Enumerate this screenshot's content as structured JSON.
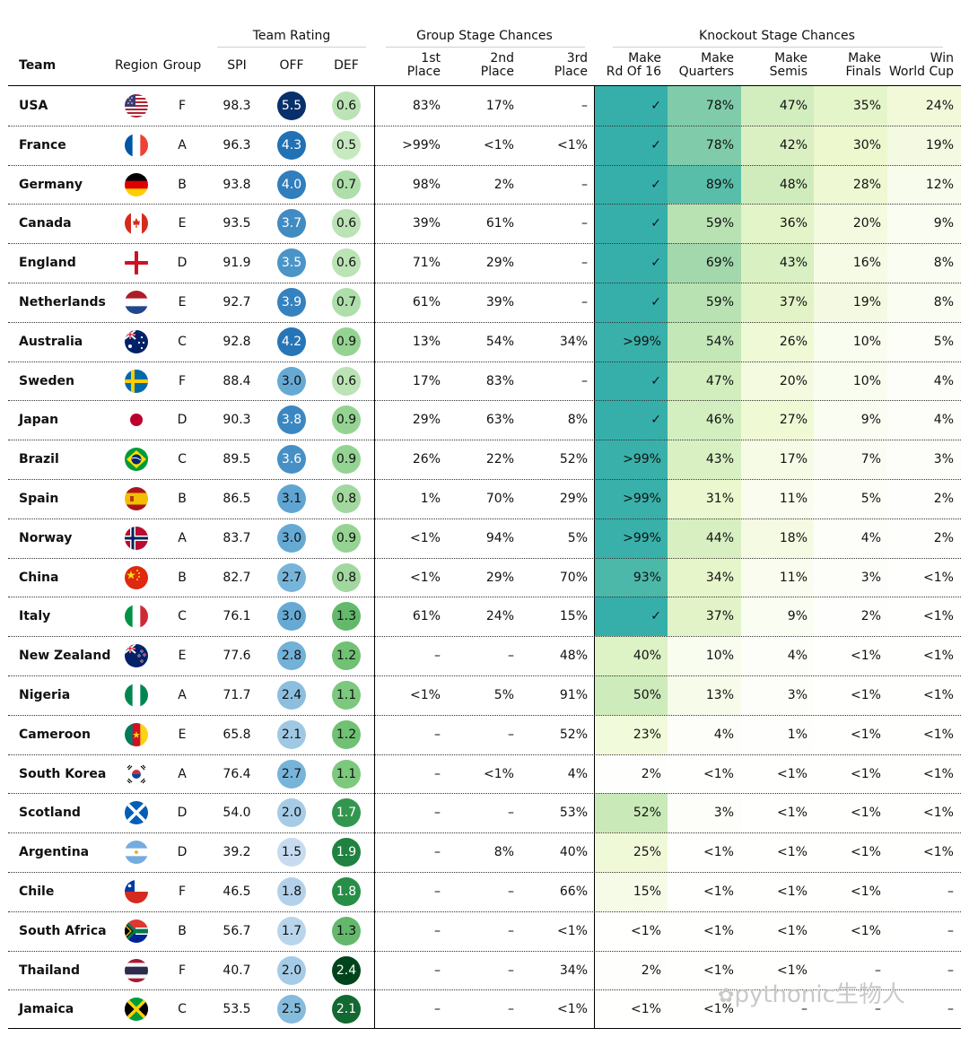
{
  "header": {
    "groups": {
      "team_rating": "Team Rating",
      "group_stage": "Group Stage Chances",
      "knockout_stage": "Knockout Stage Chances"
    },
    "columns": {
      "team": "Team",
      "region": "Region",
      "group": "Group",
      "spi": "SPI",
      "off": "OFF",
      "def": "DEF",
      "first": [
        "1st",
        "Place"
      ],
      "second": [
        "2nd",
        "Place"
      ],
      "third": [
        "3rd",
        "Place"
      ],
      "r16": [
        "Make",
        "Rd Of 16"
      ],
      "qf": [
        "Make",
        "Quarters"
      ],
      "sf": [
        "Make",
        "Semis"
      ],
      "final": [
        "Make",
        "Finals"
      ],
      "win": [
        "Win",
        "World Cup"
      ]
    }
  },
  "chart_data": {
    "type": "table",
    "color_scales": {
      "off": "sequential blue (low = light blue, high = dark navy)",
      "def": "sequential green (low = light green, high = dark green)",
      "knockout": "YlGnBu-style (0% = white, 100% = teal)"
    },
    "rows": [
      {
        "team": "USA",
        "flag": "usa-flag",
        "group": "F",
        "spi": "98.3",
        "off": "5.5",
        "def": "0.6",
        "first": "83%",
        "second": "17%",
        "third": "–",
        "r16": "✓",
        "qf": "78%",
        "sf": "47%",
        "final": "35%",
        "win": "24%",
        "r16_value": 100,
        "qf_value": 78,
        "sf_value": 47,
        "final_value": 35,
        "win_value": 24
      },
      {
        "team": "France",
        "flag": "france-flag",
        "group": "A",
        "spi": "96.3",
        "off": "4.3",
        "def": "0.5",
        "first": ">99%",
        "second": "<1%",
        "third": "<1%",
        "r16": "✓",
        "qf": "78%",
        "sf": "42%",
        "final": "30%",
        "win": "19%",
        "r16_value": 100,
        "qf_value": 78,
        "sf_value": 42,
        "final_value": 30,
        "win_value": 19
      },
      {
        "team": "Germany",
        "flag": "germany-flag",
        "group": "B",
        "spi": "93.8",
        "off": "4.0",
        "def": "0.7",
        "first": "98%",
        "second": "2%",
        "third": "–",
        "r16": "✓",
        "qf": "89%",
        "sf": "48%",
        "final": "28%",
        "win": "12%",
        "r16_value": 100,
        "qf_value": 89,
        "sf_value": 48,
        "final_value": 28,
        "win_value": 12
      },
      {
        "team": "Canada",
        "flag": "canada-flag",
        "group": "E",
        "spi": "93.5",
        "off": "3.7",
        "def": "0.6",
        "first": "39%",
        "second": "61%",
        "third": "–",
        "r16": "✓",
        "qf": "59%",
        "sf": "36%",
        "final": "20%",
        "win": "9%",
        "r16_value": 100,
        "qf_value": 59,
        "sf_value": 36,
        "final_value": 20,
        "win_value": 9
      },
      {
        "team": "England",
        "flag": "england-flag",
        "group": "D",
        "spi": "91.9",
        "off": "3.5",
        "def": "0.6",
        "first": "71%",
        "second": "29%",
        "third": "–",
        "r16": "✓",
        "qf": "69%",
        "sf": "43%",
        "final": "16%",
        "win": "8%",
        "r16_value": 100,
        "qf_value": 69,
        "sf_value": 43,
        "final_value": 16,
        "win_value": 8
      },
      {
        "team": "Netherlands",
        "flag": "netherlands-flag",
        "group": "E",
        "spi": "92.7",
        "off": "3.9",
        "def": "0.7",
        "first": "61%",
        "second": "39%",
        "third": "–",
        "r16": "✓",
        "qf": "59%",
        "sf": "37%",
        "final": "19%",
        "win": "8%",
        "r16_value": 100,
        "qf_value": 59,
        "sf_value": 37,
        "final_value": 19,
        "win_value": 8
      },
      {
        "team": "Australia",
        "flag": "australia-flag",
        "group": "C",
        "spi": "92.8",
        "off": "4.2",
        "def": "0.9",
        "first": "13%",
        "second": "54%",
        "third": "34%",
        "r16": ">99%",
        "qf": "54%",
        "sf": "26%",
        "final": "10%",
        "win": "5%",
        "r16_value": 99,
        "qf_value": 54,
        "sf_value": 26,
        "final_value": 10,
        "win_value": 5
      },
      {
        "team": "Sweden",
        "flag": "sweden-flag",
        "group": "F",
        "spi": "88.4",
        "off": "3.0",
        "def": "0.6",
        "first": "17%",
        "second": "83%",
        "third": "–",
        "r16": "✓",
        "qf": "47%",
        "sf": "20%",
        "final": "10%",
        "win": "4%",
        "r16_value": 100,
        "qf_value": 47,
        "sf_value": 20,
        "final_value": 10,
        "win_value": 4
      },
      {
        "team": "Japan",
        "flag": "japan-flag",
        "group": "D",
        "spi": "90.3",
        "off": "3.8",
        "def": "0.9",
        "first": "29%",
        "second": "63%",
        "third": "8%",
        "r16": "✓",
        "qf": "46%",
        "sf": "27%",
        "final": "9%",
        "win": "4%",
        "r16_value": 100,
        "qf_value": 46,
        "sf_value": 27,
        "final_value": 9,
        "win_value": 4
      },
      {
        "team": "Brazil",
        "flag": "brazil-flag",
        "group": "C",
        "spi": "89.5",
        "off": "3.6",
        "def": "0.9",
        "first": "26%",
        "second": "22%",
        "third": "52%",
        "r16": ">99%",
        "qf": "43%",
        "sf": "17%",
        "final": "7%",
        "win": "3%",
        "r16_value": 99,
        "qf_value": 43,
        "sf_value": 17,
        "final_value": 7,
        "win_value": 3
      },
      {
        "team": "Spain",
        "flag": "spain-flag",
        "group": "B",
        "spi": "86.5",
        "off": "3.1",
        "def": "0.8",
        "first": "1%",
        "second": "70%",
        "third": "29%",
        "r16": ">99%",
        "qf": "31%",
        "sf": "11%",
        "final": "5%",
        "win": "2%",
        "r16_value": 99,
        "qf_value": 31,
        "sf_value": 11,
        "final_value": 5,
        "win_value": 2
      },
      {
        "team": "Norway",
        "flag": "norway-flag",
        "group": "A",
        "spi": "83.7",
        "off": "3.0",
        "def": "0.9",
        "first": "<1%",
        "second": "94%",
        "third": "5%",
        "r16": ">99%",
        "qf": "44%",
        "sf": "18%",
        "final": "4%",
        "win": "2%",
        "r16_value": 99,
        "qf_value": 44,
        "sf_value": 18,
        "final_value": 4,
        "win_value": 2
      },
      {
        "team": "China",
        "flag": "china-flag",
        "group": "B",
        "spi": "82.7",
        "off": "2.7",
        "def": "0.8",
        "first": "<1%",
        "second": "29%",
        "third": "70%",
        "r16": "93%",
        "qf": "34%",
        "sf": "11%",
        "final": "3%",
        "win": "<1%",
        "r16_value": 93,
        "qf_value": 34,
        "sf_value": 11,
        "final_value": 3,
        "win_value": 0.5
      },
      {
        "team": "Italy",
        "flag": "italy-flag",
        "group": "C",
        "spi": "76.1",
        "off": "3.0",
        "def": "1.3",
        "first": "61%",
        "second": "24%",
        "third": "15%",
        "r16": "✓",
        "qf": "37%",
        "sf": "9%",
        "final": "2%",
        "win": "<1%",
        "r16_value": 100,
        "qf_value": 37,
        "sf_value": 9,
        "final_value": 2,
        "win_value": 0.5
      },
      {
        "team": "New Zealand",
        "flag": "new-zealand-flag",
        "group": "E",
        "spi": "77.6",
        "off": "2.8",
        "def": "1.2",
        "first": "–",
        "second": "–",
        "third": "48%",
        "r16": "40%",
        "qf": "10%",
        "sf": "4%",
        "final": "<1%",
        "win": "<1%",
        "r16_value": 40,
        "qf_value": 10,
        "sf_value": 4,
        "final_value": 0.5,
        "win_value": 0.5
      },
      {
        "team": "Nigeria",
        "flag": "nigeria-flag",
        "group": "A",
        "spi": "71.7",
        "off": "2.4",
        "def": "1.1",
        "first": "<1%",
        "second": "5%",
        "third": "91%",
        "r16": "50%",
        "qf": "13%",
        "sf": "3%",
        "final": "<1%",
        "win": "<1%",
        "r16_value": 50,
        "qf_value": 13,
        "sf_value": 3,
        "final_value": 0.5,
        "win_value": 0.5
      },
      {
        "team": "Cameroon",
        "flag": "cameroon-flag",
        "group": "E",
        "spi": "65.8",
        "off": "2.1",
        "def": "1.2",
        "first": "–",
        "second": "–",
        "third": "52%",
        "r16": "23%",
        "qf": "4%",
        "sf": "1%",
        "final": "<1%",
        "win": "<1%",
        "r16_value": 23,
        "qf_value": 4,
        "sf_value": 1,
        "final_value": 0.5,
        "win_value": 0.5
      },
      {
        "team": "South Korea",
        "flag": "south-korea-flag",
        "group": "A",
        "spi": "76.4",
        "off": "2.7",
        "def": "1.1",
        "first": "–",
        "second": "<1%",
        "third": "4%",
        "r16": "2%",
        "qf": "<1%",
        "sf": "<1%",
        "final": "<1%",
        "win": "<1%",
        "r16_value": 2,
        "qf_value": 0.5,
        "sf_value": 0.5,
        "final_value": 0.5,
        "win_value": 0.5
      },
      {
        "team": "Scotland",
        "flag": "scotland-flag",
        "group": "D",
        "spi": "54.0",
        "off": "2.0",
        "def": "1.7",
        "first": "–",
        "second": "–",
        "third": "53%",
        "r16": "52%",
        "qf": "3%",
        "sf": "<1%",
        "final": "<1%",
        "win": "<1%",
        "r16_value": 52,
        "qf_value": 3,
        "sf_value": 0.5,
        "final_value": 0.5,
        "win_value": 0.5
      },
      {
        "team": "Argentina",
        "flag": "argentina-flag",
        "group": "D",
        "spi": "39.2",
        "off": "1.5",
        "def": "1.9",
        "first": "–",
        "second": "8%",
        "third": "40%",
        "r16": "25%",
        "qf": "<1%",
        "sf": "<1%",
        "final": "<1%",
        "win": "<1%",
        "r16_value": 25,
        "qf_value": 0.5,
        "sf_value": 0.5,
        "final_value": 0.5,
        "win_value": 0.5
      },
      {
        "team": "Chile",
        "flag": "chile-flag",
        "group": "F",
        "spi": "46.5",
        "off": "1.8",
        "def": "1.8",
        "first": "–",
        "second": "–",
        "third": "66%",
        "r16": "15%",
        "qf": "<1%",
        "sf": "<1%",
        "final": "<1%",
        "win": "–",
        "r16_value": 15,
        "qf_value": 0.5,
        "sf_value": 0.5,
        "final_value": 0.5,
        "win_value": 0
      },
      {
        "team": "South Africa",
        "flag": "south-africa-flag",
        "group": "B",
        "spi": "56.7",
        "off": "1.7",
        "def": "1.3",
        "first": "–",
        "second": "–",
        "third": "<1%",
        "r16": "<1%",
        "qf": "<1%",
        "sf": "<1%",
        "final": "<1%",
        "win": "–",
        "r16_value": 0.5,
        "qf_value": 0.5,
        "sf_value": 0.5,
        "final_value": 0.5,
        "win_value": 0
      },
      {
        "team": "Thailand",
        "flag": "thailand-flag",
        "group": "F",
        "spi": "40.7",
        "off": "2.0",
        "def": "2.4",
        "first": "–",
        "second": "–",
        "third": "34%",
        "r16": "2%",
        "qf": "<1%",
        "sf": "<1%",
        "final": "–",
        "win": "–",
        "r16_value": 2,
        "qf_value": 0.5,
        "sf_value": 0.5,
        "final_value": 0,
        "win_value": 0
      },
      {
        "team": "Jamaica",
        "flag": "jamaica-flag",
        "group": "C",
        "spi": "53.5",
        "off": "2.5",
        "def": "2.1",
        "first": "–",
        "second": "–",
        "third": "<1%",
        "r16": "<1%",
        "qf": "<1%",
        "sf": "–",
        "final": "–",
        "win": "–",
        "r16_value": 0.5,
        "qf_value": 0.5,
        "sf_value": 0,
        "final_value": 0,
        "win_value": 0
      }
    ]
  },
  "watermark": "pythonic生物人"
}
